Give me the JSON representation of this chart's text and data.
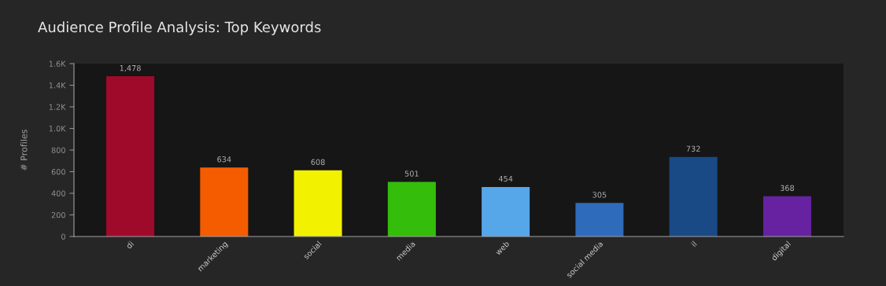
{
  "chart_data": {
    "type": "bar",
    "title": "Audience Profile Analysis: Top Keywords",
    "ylabel": "# Profiles",
    "categories": [
      "di",
      "marketing",
      "social",
      "media",
      "web",
      "social media",
      "il",
      "digital"
    ],
    "values": [
      1478,
      634,
      608,
      501,
      454,
      305,
      732,
      368
    ],
    "value_labels": [
      "1,478",
      "634",
      "608",
      "501",
      "454",
      "305",
      "732",
      "368"
    ],
    "colors": [
      "#a00a2a",
      "#f55c00",
      "#f2f200",
      "#34bd0a",
      "#56a6ea",
      "#2f6bbb",
      "#194a86",
      "#6622a0"
    ],
    "ylim": [
      0,
      1600
    ],
    "yticks": [
      0,
      200,
      400,
      600,
      800,
      {
        "value": 1000,
        "label": "1.0K"
      },
      {
        "value": 1200,
        "label": "1.2K"
      },
      {
        "value": 1400,
        "label": "1.4K"
      },
      {
        "value": 1600,
        "label": "1.6K"
      }
    ],
    "grid": false
  }
}
